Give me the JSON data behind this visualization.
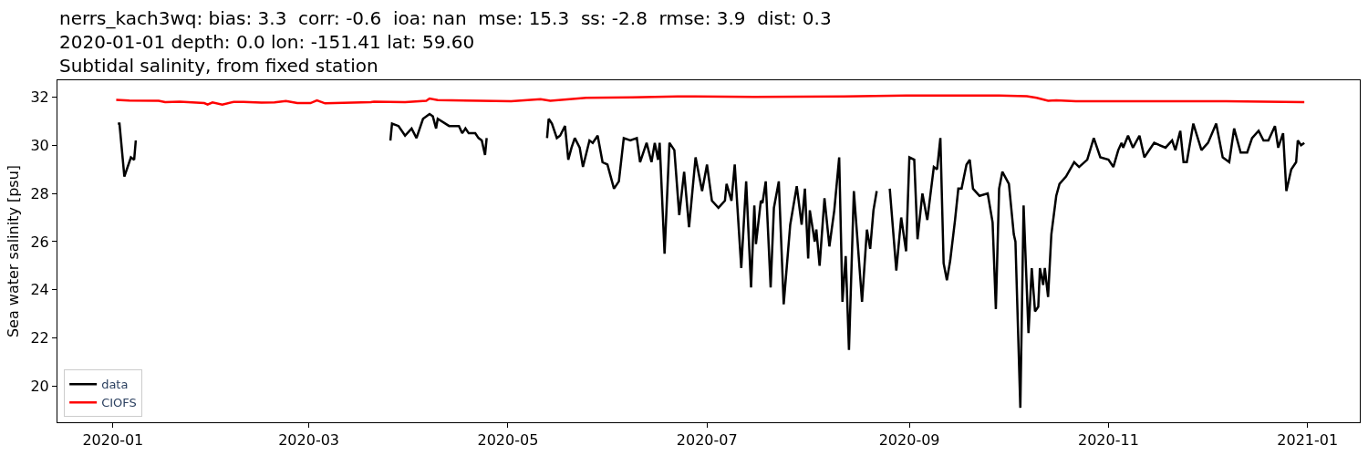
{
  "chart_data": {
    "type": "line",
    "title": "nerrs_kach3wq: bias: 3.3  corr: -0.6  ioa: nan  mse: 15.3  ss: -2.8  rmse: 3.9  dist: 0.3\n2020-01-01 depth: 0.0 lon: -151.41 lat: 59.60\nSubtidal salinity, from fixed station",
    "ylabel": "Sea water salinity [psu]",
    "xlim": [
      "2019-12-15",
      "2021-01-17"
    ],
    "xticks": [
      {
        "value": "2020-01-01",
        "label": "2020-01"
      },
      {
        "value": "2020-03-01",
        "label": "2020-03"
      },
      {
        "value": "2020-05-01",
        "label": "2020-05"
      },
      {
        "value": "2020-07-01",
        "label": "2020-07"
      },
      {
        "value": "2020-09-01",
        "label": "2020-09"
      },
      {
        "value": "2020-11-01",
        "label": "2020-11"
      },
      {
        "value": "2021-01-01",
        "label": "2021-01"
      }
    ],
    "ylim": [
      18.5,
      32.7
    ],
    "yticks": [
      20,
      22,
      24,
      26,
      28,
      30,
      32
    ],
    "grid": false,
    "legend": "bottom left",
    "marker": "none",
    "line_style": "solid",
    "series": [
      {
        "name": "data",
        "color": "#000000",
        "x": [
          "2020-01-02T12:00",
          "2020-01-03",
          "2020-01-04T12:00",
          "2020-01-06T12:00",
          "2020-01-07T12:00",
          "2020-01-08",
          "2020-01-20",
          "2020-03-26",
          "2020-03-26T12:00",
          "2020-03-28T12:00",
          "2020-03-30T12:00",
          "2020-04-01T12:00",
          "2020-04-03",
          "2020-04-05",
          "2020-04-07",
          "2020-04-08",
          "2020-04-09",
          "2020-04-09T12:00",
          "2020-04-13",
          "2020-04-16",
          "2020-04-17",
          "2020-04-18",
          "2020-04-19",
          "2020-04-21",
          "2020-04-22",
          "2020-04-23",
          "2020-04-24",
          "2020-04-24T12:00",
          "2020-05-05",
          "2020-05-13",
          "2020-05-13T12:00",
          "2020-05-14T12:00",
          "2020-05-16",
          "2020-05-17",
          "2020-05-18T12:00",
          "2020-05-19T12:00",
          "2020-05-20T12:00",
          "2020-05-21T12:00",
          "2020-05-23",
          "2020-05-24",
          "2020-05-26",
          "2020-05-27",
          "2020-05-28T12:00",
          "2020-05-30",
          "2020-05-31T12:00",
          "2020-06-02T12:00",
          "2020-06-04",
          "2020-06-05T12:00",
          "2020-06-07T12:00",
          "2020-06-09T12:00",
          "2020-06-10T12:00",
          "2020-06-12T12:00",
          "2020-06-14",
          "2020-06-15",
          "2020-06-16",
          "2020-06-16T12:00",
          "2020-06-18",
          "2020-06-19T12:00",
          "2020-06-21",
          "2020-06-22T12:00",
          "2020-06-24",
          "2020-06-25T12:00",
          "2020-06-27T12:00",
          "2020-06-29T12:00",
          "2020-07-01",
          "2020-07-02T12:00",
          "2020-07-04T12:00",
          "2020-07-06T12:00",
          "2020-07-07",
          "2020-07-08T12:00",
          "2020-07-09T12:00",
          "2020-07-11T12:00",
          "2020-07-13",
          "2020-07-14T12:00",
          "2020-07-15T12:00",
          "2020-07-16",
          "2020-07-17T12:00",
          "2020-07-18",
          "2020-07-19",
          "2020-07-20T12:00",
          "2020-07-21T12:00",
          "2020-07-23",
          "2020-07-24T12:00",
          "2020-07-26T12:00",
          "2020-07-28T12:00",
          "2020-07-30",
          "2020-07-31",
          "2020-08-01",
          "2020-08-01T12:00",
          "2020-08-03",
          "2020-08-03T12:00",
          "2020-08-04T12:00",
          "2020-08-06",
          "2020-08-07T12:00",
          "2020-08-09",
          "2020-08-10T12:00",
          "2020-08-11T12:00",
          "2020-08-12T12:00",
          "2020-08-13T12:00",
          "2020-08-15",
          "2020-08-17T12:00",
          "2020-08-19",
          "2020-08-20",
          "2020-08-21",
          "2020-08-22",
          "2020-08-24",
          "2020-08-26",
          "2020-08-28",
          "2020-08-29T12:00",
          "2020-08-31",
          "2020-09-01",
          "2020-09-02T12:00",
          "2020-09-03T12:00",
          "2020-09-05",
          "2020-09-06T12:00",
          "2020-09-08T12:00",
          "2020-09-09T12:00",
          "2020-09-10T12:00",
          "2020-09-11T12:00",
          "2020-09-12T12:00",
          "2020-09-13T12:00",
          "2020-09-15",
          "2020-09-16",
          "2020-09-17",
          "2020-09-18T12:00",
          "2020-09-19T12:00",
          "2020-09-20T12:00",
          "2020-09-22T12:00",
          "2020-09-25",
          "2020-09-26T12:00",
          "2020-09-27T12:00",
          "2020-09-28T12:00",
          "2020-09-29T12:00",
          "2020-10-01T12:00",
          "2020-10-03",
          "2020-10-03T12:00",
          "2020-10-05",
          "2020-10-06",
          "2020-10-07T12:00",
          "2020-10-08T12:00",
          "2020-10-09T12:00",
          "2020-10-10T12:00",
          "2020-10-11",
          "2020-10-12",
          "2020-10-12T12:00",
          "2020-10-13T12:00",
          "2020-10-14T12:00",
          "2020-10-16",
          "2020-10-17",
          "2020-10-19",
          "2020-10-21T12:00",
          "2020-10-23",
          "2020-10-25T12:00",
          "2020-10-27T12:00",
          "2020-10-29T12:00",
          "2020-11-01",
          "2020-11-02T12:00",
          "2020-11-04",
          "2020-11-05",
          "2020-11-05T12:00",
          "2020-11-07",
          "2020-11-08T12:00",
          "2020-11-10T12:00",
          "2020-11-12",
          "2020-11-15",
          "2020-11-18T12:00",
          "2020-11-20T12:00",
          "2020-11-21T12:00",
          "2020-11-23",
          "2020-11-24",
          "2020-11-25",
          "2020-11-27",
          "2020-11-29T12:00",
          "2020-12-01T12:00",
          "2020-12-04",
          "2020-12-06",
          "2020-12-08",
          "2020-12-09T12:00",
          "2020-12-11T12:00",
          "2020-12-13T12:00",
          "2020-12-15",
          "2020-12-17",
          "2020-12-18T12:00",
          "2020-12-20",
          "2020-12-22",
          "2020-12-23",
          "2020-12-24T12:00",
          "2020-12-25T12:00",
          "2020-12-27",
          "2020-12-28T12:00",
          "2020-12-29",
          "2020-12-30",
          "2020-12-31"
        ],
        "values": [
          30.9,
          30.9,
          28.7,
          29.5,
          29.4,
          30.2,
          null,
          30.2,
          30.9,
          30.8,
          30.4,
          30.7,
          30.3,
          31.1,
          31.3,
          31.2,
          30.7,
          31.1,
          30.8,
          30.8,
          30.5,
          30.7,
          30.5,
          30.5,
          30.3,
          30.2,
          29.6,
          30.3,
          null,
          30.3,
          31.1,
          30.9,
          30.3,
          30.4,
          30.8,
          29.4,
          29.9,
          30.3,
          29.9,
          29.1,
          30.2,
          30.1,
          30.4,
          29.3,
          29.2,
          28.2,
          28.5,
          30.3,
          30.2,
          30.3,
          29.3,
          30.1,
          29.3,
          30.1,
          29.4,
          30.1,
          25.5,
          30.1,
          29.8,
          27.1,
          28.9,
          26.6,
          29.5,
          28.1,
          29.2,
          27.7,
          27.4,
          27.7,
          28.4,
          27.7,
          29.2,
          24.9,
          28.5,
          24.1,
          27.5,
          25.9,
          27.7,
          27.6,
          28.5,
          24.1,
          27.4,
          28.5,
          23.4,
          26.7,
          28.3,
          26.7,
          28.2,
          25.3,
          27.3,
          26.0,
          26.5,
          25.0,
          27.8,
          25.8,
          27.3,
          29.5,
          23.5,
          25.4,
          21.5,
          28.1,
          23.5,
          26.5,
          25.7,
          27.3,
          28.1,
          null,
          28.2,
          24.8,
          27.0,
          25.6,
          29.5,
          29.4,
          26.1,
          28.0,
          26.9,
          29.1,
          29.0,
          30.3,
          25.1,
          24.4,
          25.2,
          26.9,
          28.2,
          28.2,
          29.2,
          29.4,
          28.2,
          27.9,
          28.0,
          26.8,
          23.2,
          28.2,
          28.9,
          28.4,
          26.3,
          26.0,
          19.1,
          27.5,
          22.2,
          24.9,
          23.1,
          23.3,
          24.9,
          24.2,
          24.9,
          23.7,
          26.3,
          27.9,
          28.4,
          28.7,
          29.3,
          29.1,
          29.4,
          30.3,
          29.5,
          29.4,
          29.1,
          29.8,
          30.1,
          29.9,
          30.4,
          29.9,
          30.4,
          29.5,
          30.1,
          29.9,
          30.2,
          29.8,
          30.6,
          29.3,
          29.3,
          30.9,
          29.8,
          30.1,
          30.9,
          29.5,
          29.3,
          30.7,
          29.7,
          29.7,
          30.3,
          30.6,
          30.2,
          30.2,
          30.8,
          29.9,
          30.5,
          28.1,
          29.0,
          29.3,
          30.2,
          30.0,
          30.1
        ]
      },
      {
        "name": "CIOFS",
        "color": "#ff0000",
        "x": [
          "2020-01-02",
          "2020-01-06",
          "2020-01-15",
          "2020-01-17",
          "2020-01-21T12:00",
          "2020-01-29",
          "2020-01-30",
          "2020-01-31T12:00",
          "2020-02-03T12:00",
          "2020-02-07",
          "2020-02-10",
          "2020-02-15T12:00",
          "2020-02-19T12:00",
          "2020-02-23",
          "2020-02-26T12:00",
          "2020-03-01T12:00",
          "2020-03-03T12:00",
          "2020-03-06",
          "2020-03-20",
          "2020-03-21",
          "2020-03-30T12:00",
          "2020-04-06",
          "2020-04-07",
          "2020-04-09T12:00",
          "2020-04-22T12:00",
          "2020-05-02",
          "2020-05-11",
          "2020-05-14",
          "2020-05-25",
          "2020-06-08",
          "2020-06-22",
          "2020-07-15T12:00",
          "2020-08-12",
          "2020-08-31",
          "2020-09-13",
          "2020-09-28T12:00",
          "2020-10-07",
          "2020-10-10",
          "2020-10-13T12:00",
          "2020-10-16",
          "2020-10-22",
          "2020-11-14",
          "2020-12-07",
          "2020-12-31"
        ],
        "values": [
          31.89,
          31.86,
          31.85,
          31.79,
          31.81,
          31.75,
          31.69,
          31.78,
          31.69,
          31.8,
          31.8,
          31.77,
          31.78,
          31.84,
          31.75,
          31.75,
          31.86,
          31.74,
          31.79,
          31.81,
          31.79,
          31.85,
          31.94,
          31.88,
          31.85,
          31.83,
          31.91,
          31.85,
          31.97,
          31.99,
          32.03,
          32.01,
          32.03,
          32.07,
          32.07,
          32.07,
          32.04,
          31.97,
          31.85,
          31.87,
          31.83,
          31.83,
          31.83,
          31.79
        ]
      }
    ]
  }
}
